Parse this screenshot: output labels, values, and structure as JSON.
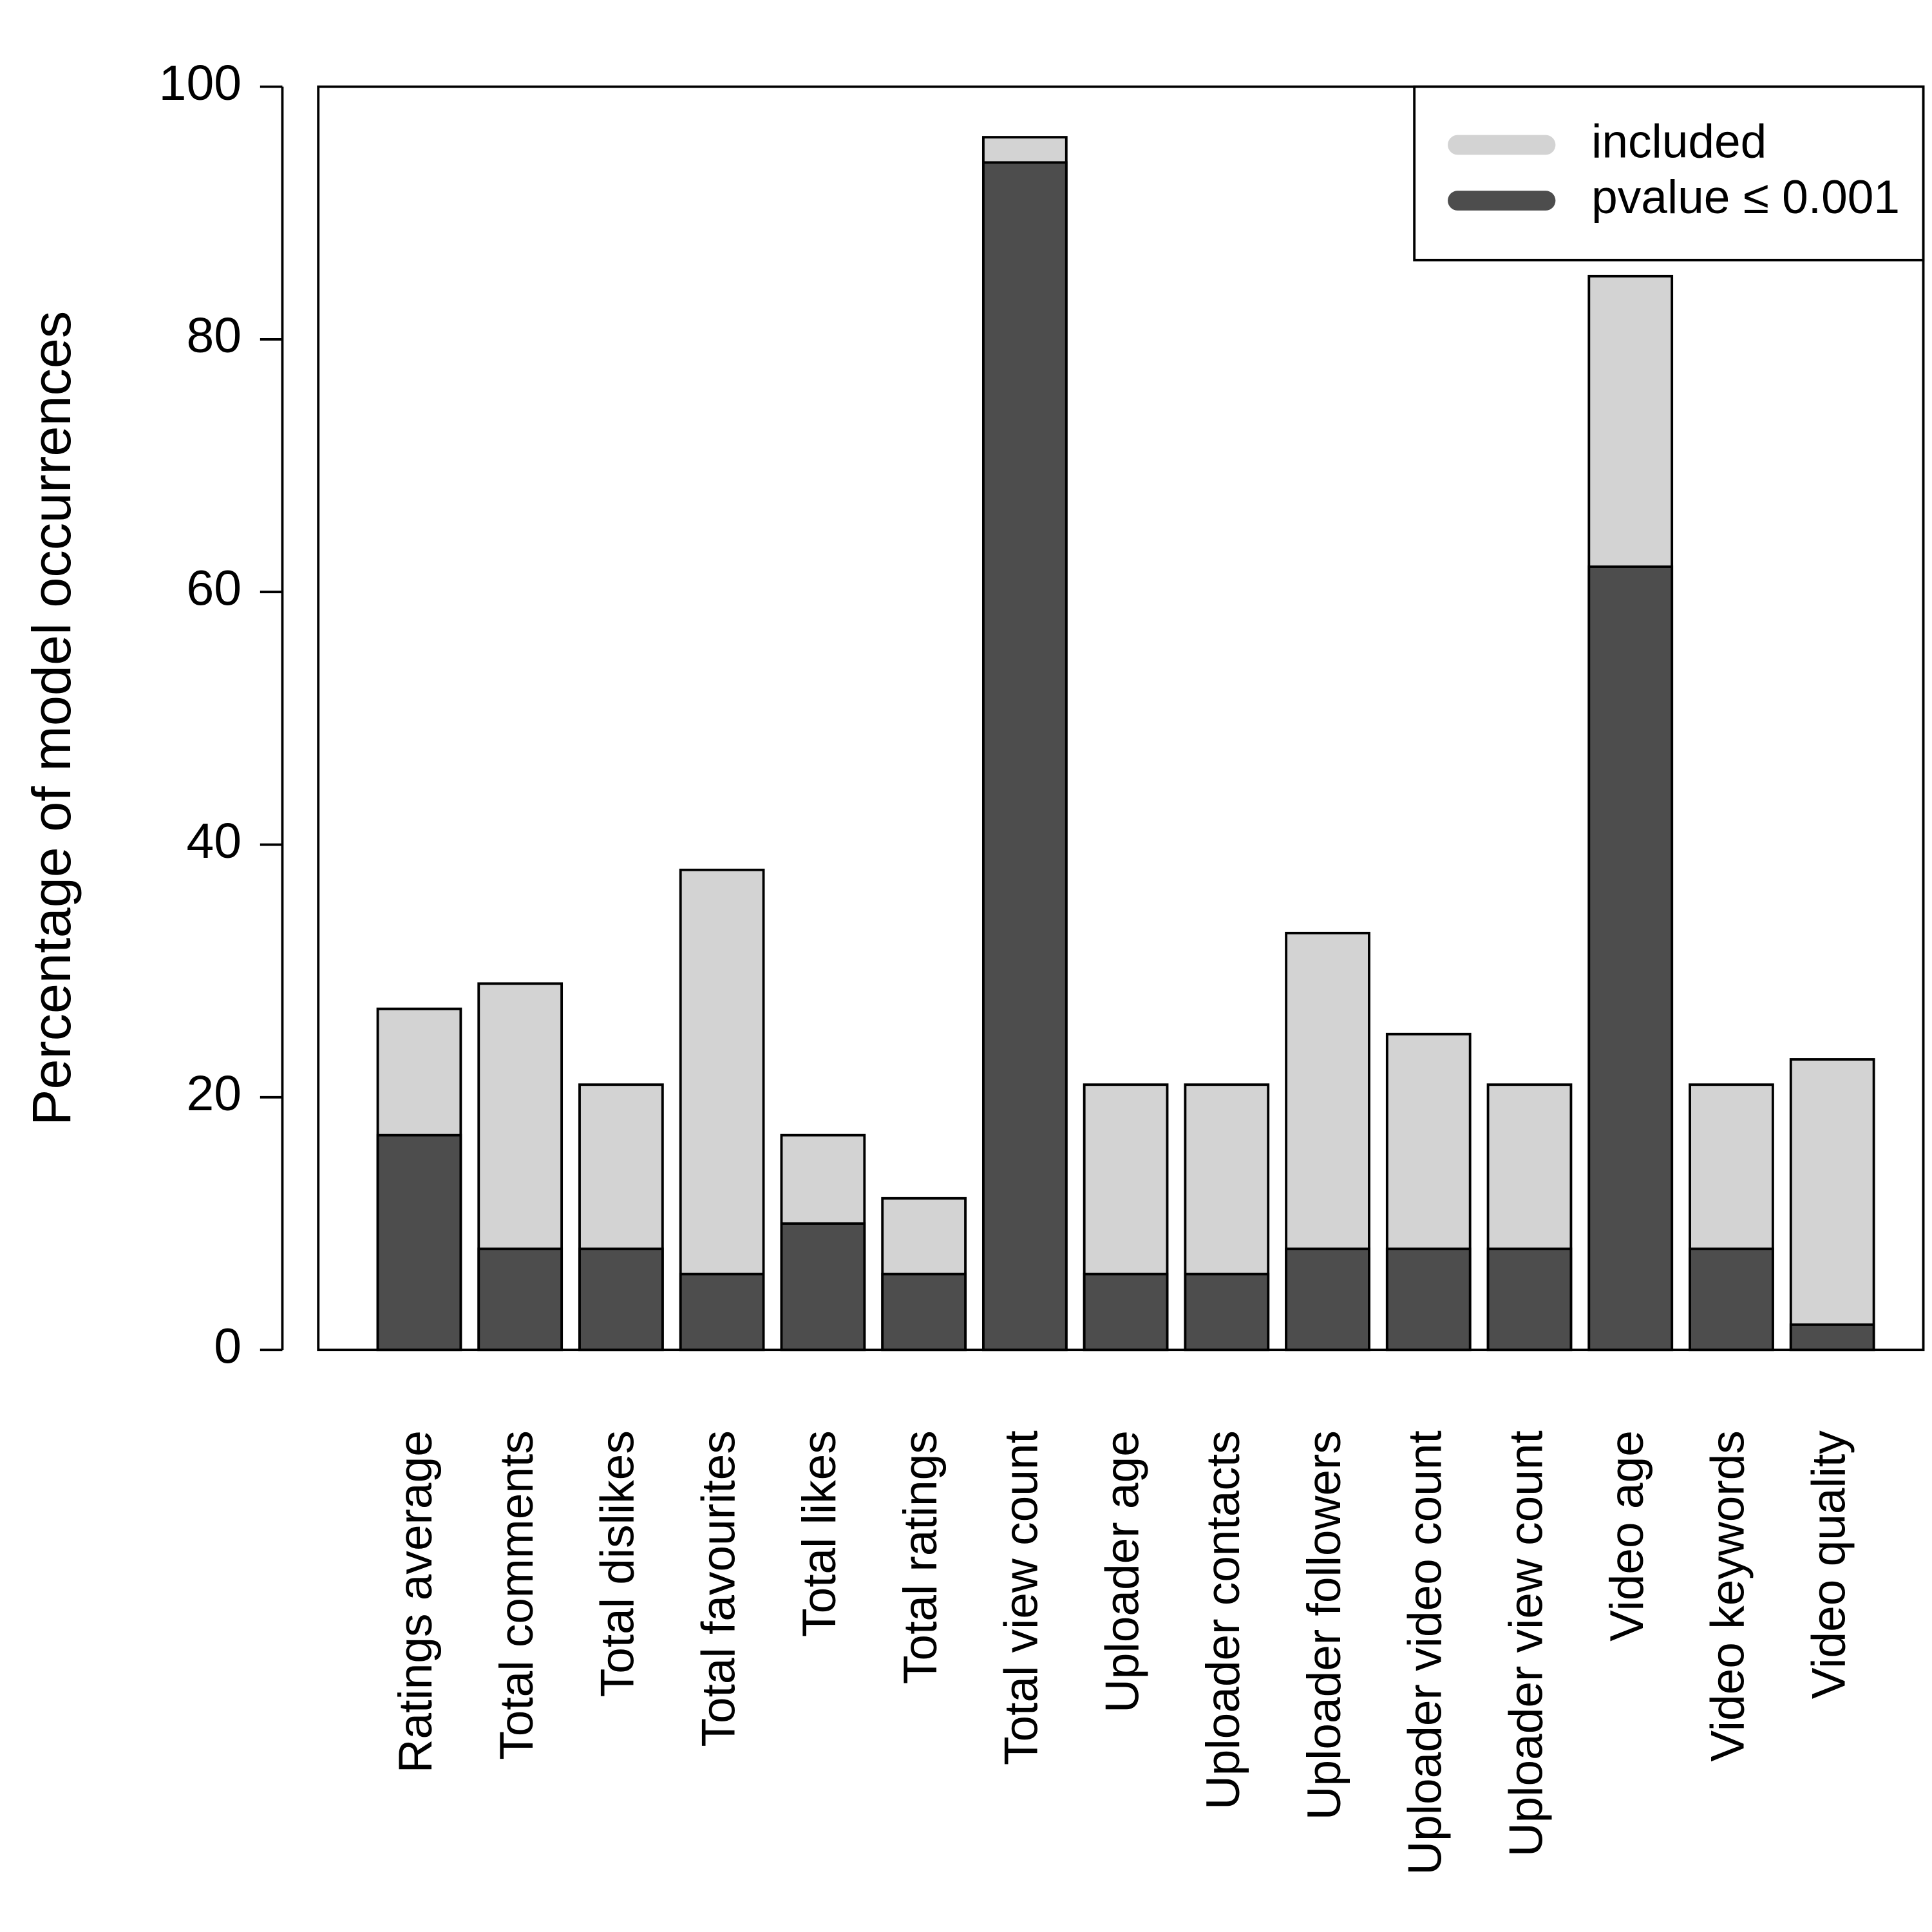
{
  "chart_data": {
    "type": "bar",
    "y_label": "Percentage of model occurrences",
    "categories": [
      "Ratings average",
      "Total comments",
      "Total dislikes",
      "Total favourites",
      "Total likes",
      "Total ratings",
      "Total view count",
      "Uploader age",
      "Uploader contacts",
      "Uploader followers",
      "Uploader video count",
      "Uploader view count",
      "Video age",
      "Video keywords",
      "Video quality"
    ],
    "series": [
      {
        "name": "included",
        "color": "#d3d3d3",
        "values": [
          27,
          29,
          21,
          38,
          17,
          12,
          96,
          21,
          21,
          33,
          25,
          21,
          85,
          21,
          23
        ]
      },
      {
        "name": "pvalue ≤ 0.001",
        "color": "#4d4d4d",
        "values": [
          17,
          8,
          8,
          6,
          10,
          6,
          94,
          6,
          6,
          8,
          8,
          8,
          62,
          8,
          2
        ]
      }
    ],
    "ylim": [
      0,
      100
    ],
    "yticks": [
      0,
      20,
      40,
      60,
      80,
      100
    ],
    "legend": "topright"
  }
}
